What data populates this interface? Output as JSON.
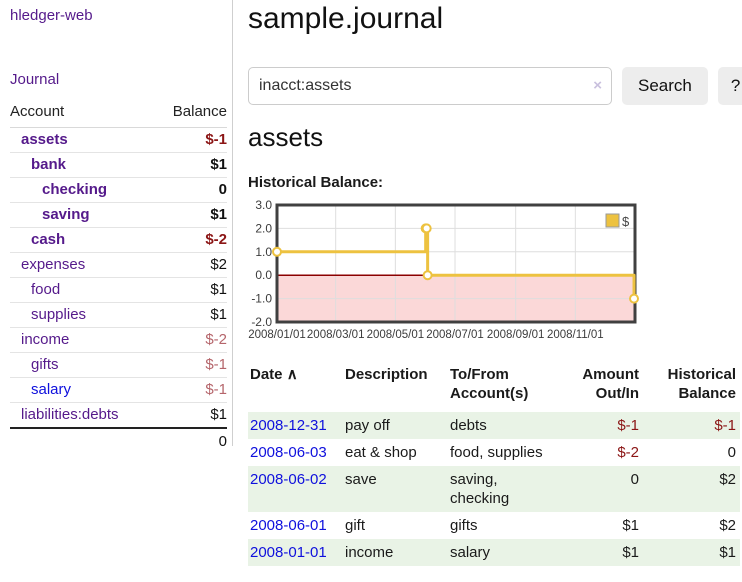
{
  "colors": {
    "link_purple": "#551a8b",
    "link_blue": "#0f10dd",
    "negative_strong": "#8b1515",
    "negative_light": "#b5656b",
    "row_green": "#e9f3e6",
    "chart_series_yellow": "#edc240",
    "chart_negative_fill": "#fbd8d8",
    "chart_zero_line": "#8b0000"
  },
  "app": {
    "title": "hledger-web",
    "nav_journal": "Journal"
  },
  "sidebar": {
    "header": {
      "account": "Account",
      "balance": "Balance"
    },
    "accounts": [
      {
        "name": "assets",
        "indent": 1,
        "bold": true,
        "link": "purple",
        "balance": "$-1",
        "neg": "strong"
      },
      {
        "name": "bank",
        "indent": 2,
        "bold": true,
        "link": "purple",
        "balance": "$1",
        "neg": null
      },
      {
        "name": "checking",
        "indent": 3,
        "bold": true,
        "link": "purple",
        "balance": "0",
        "neg": null
      },
      {
        "name": "saving",
        "indent": 3,
        "bold": true,
        "link": "purple",
        "balance": "$1",
        "neg": null
      },
      {
        "name": "cash",
        "indent": 2,
        "bold": true,
        "link": "purple",
        "balance": "$-2",
        "neg": "strong"
      },
      {
        "name": "expenses",
        "indent": 1,
        "bold": false,
        "link": "purple",
        "balance": "$2",
        "neg": null
      },
      {
        "name": "food",
        "indent": 2,
        "bold": false,
        "link": "purple",
        "balance": "$1",
        "neg": null
      },
      {
        "name": "supplies",
        "indent": 2,
        "bold": false,
        "link": "purple",
        "balance": "$1",
        "neg": null
      },
      {
        "name": "income",
        "indent": 1,
        "bold": false,
        "link": "purple",
        "balance": "$-2",
        "neg": "light"
      },
      {
        "name": "gifts",
        "indent": 2,
        "bold": false,
        "link": "purple",
        "balance": "$-1",
        "neg": "light"
      },
      {
        "name": "salary",
        "indent": 2,
        "bold": false,
        "link": "blue",
        "balance": "$-1",
        "neg": "light"
      },
      {
        "name": "liabilities:debts",
        "indent": 1,
        "bold": false,
        "link": "purple",
        "balance": "$1",
        "neg": null
      }
    ],
    "total": "0"
  },
  "header": {
    "title": "sample.journal"
  },
  "search": {
    "value": "inacct:assets",
    "clear_icon": "×",
    "button_label": "Search",
    "help_label": "?"
  },
  "account_page": {
    "heading": "assets",
    "chart_label": "Historical Balance:"
  },
  "chart_data": {
    "type": "line",
    "title": "Historical Balance:",
    "style": "step",
    "series": [
      {
        "name": "$",
        "color": "#edc240",
        "points": [
          {
            "date": "2008-01-01",
            "value": 1.0
          },
          {
            "date": "2008-06-01",
            "value": 2.0
          },
          {
            "date": "2008-06-02",
            "value": 2.0
          },
          {
            "date": "2008-06-03",
            "value": 0.0
          },
          {
            "date": "2008-12-31",
            "value": -1.0
          }
        ]
      }
    ],
    "x_range": [
      "2008-01-01",
      "2009-01-01"
    ],
    "x_tick_labels": [
      "2008/01/01",
      "2008/03/01",
      "2008/05/01",
      "2008/07/01",
      "2008/09/01",
      "2008/11/01"
    ],
    "y_ticks": [
      3.0,
      2.0,
      1.0,
      0.0,
      -1.0,
      -2.0
    ],
    "y_range": [
      -2.0,
      3.0
    ],
    "grid": true,
    "legend": {
      "label": "$",
      "position": "top-right"
    },
    "negative_region_color": "#fbd8d8",
    "zero_line_color": "#8b0000"
  },
  "register": {
    "sort_indicator": "∧",
    "columns": [
      {
        "label": "Date",
        "align": "left"
      },
      {
        "label": "Description",
        "align": "left"
      },
      {
        "label": "To/From Account(s)",
        "align": "left"
      },
      {
        "label": "Amount Out/In",
        "align": "right"
      },
      {
        "label": "Historical Balance",
        "align": "right"
      }
    ],
    "rows": [
      {
        "date": "2008-12-31",
        "description": "pay off",
        "accounts": "debts",
        "amount": "$-1",
        "amount_neg": true,
        "balance": "$-1",
        "balance_neg": true
      },
      {
        "date": "2008-06-03",
        "description": "eat & shop",
        "accounts": "food, supplies",
        "amount": "$-2",
        "amount_neg": true,
        "balance": "0",
        "balance_neg": false
      },
      {
        "date": "2008-06-02",
        "description": "save",
        "accounts": "saving, checking",
        "amount": "0",
        "amount_neg": false,
        "balance": "$2",
        "balance_neg": false
      },
      {
        "date": "2008-06-01",
        "description": "gift",
        "accounts": "gifts",
        "amount": "$1",
        "amount_neg": false,
        "balance": "$2",
        "balance_neg": false
      },
      {
        "date": "2008-01-01",
        "description": "income",
        "accounts": "salary",
        "amount": "$1",
        "amount_neg": false,
        "balance": "$1",
        "balance_neg": false
      }
    ]
  }
}
